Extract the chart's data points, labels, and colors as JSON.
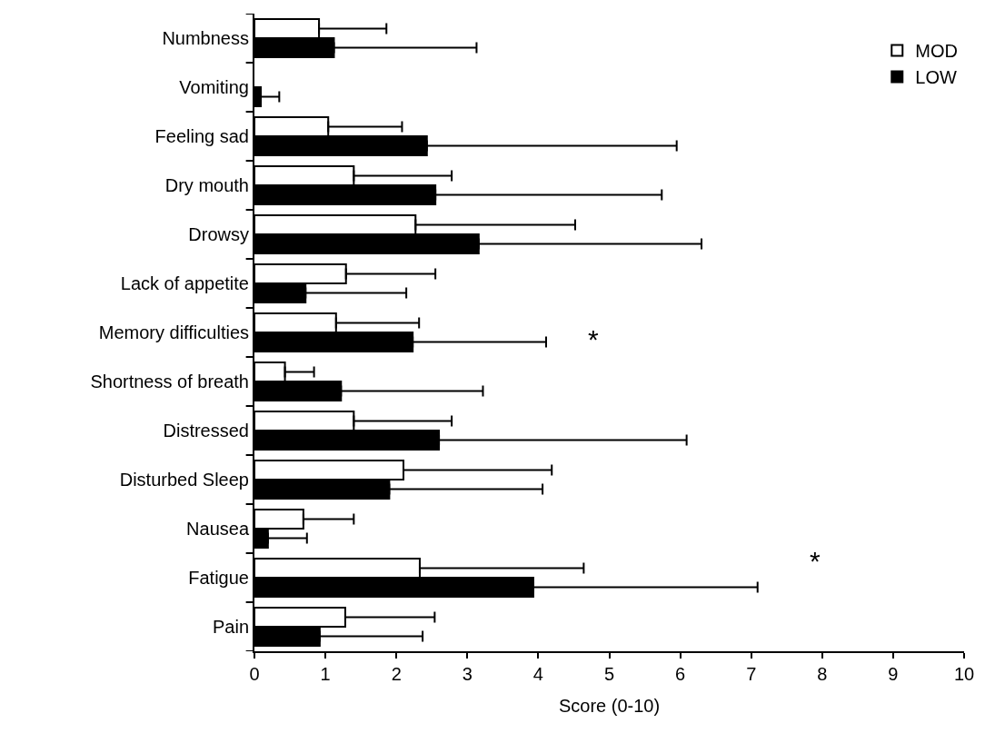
{
  "chart_data": {
    "type": "bar",
    "orientation": "horizontal",
    "xlabel": "Score (0-10)",
    "categories": [
      "Numbness",
      "Vomiting",
      "Feeling sad",
      "Dry mouth",
      "Drowsy",
      "Lack of appetite",
      "Memory difficulties",
      "Shortness of breath",
      "Distressed",
      "Disturbed Sleep",
      "Nausea",
      "Fatigue",
      "Pain"
    ],
    "series": [
      {
        "name": "MOD",
        "color": "#ffffff",
        "values": [
          0.91,
          null,
          1.04,
          1.4,
          2.27,
          1.29,
          1.15,
          0.43,
          1.4,
          2.1,
          0.69,
          2.33,
          1.28
        ],
        "errors": [
          [
            0.91,
            1.86
          ],
          null,
          [
            1.04,
            2.08
          ],
          [
            1.4,
            2.78
          ],
          [
            2.27,
            4.52
          ],
          [
            1.29,
            2.55
          ],
          [
            1.15,
            2.32
          ],
          [
            0.43,
            0.84
          ],
          [
            1.4,
            2.78
          ],
          [
            2.1,
            4.19
          ],
          [
            0.69,
            1.4
          ],
          [
            2.33,
            4.64
          ],
          [
            1.28,
            2.54
          ]
        ]
      },
      {
        "name": "LOW",
        "color": "#000000",
        "values": [
          1.12,
          0.09,
          2.43,
          2.55,
          3.16,
          0.72,
          2.23,
          1.22,
          2.6,
          1.9,
          0.19,
          3.93,
          0.92
        ],
        "errors": [
          [
            1.12,
            3.13
          ],
          [
            0.09,
            0.35
          ],
          [
            2.43,
            5.95
          ],
          [
            2.55,
            5.74
          ],
          [
            3.16,
            6.3
          ],
          [
            0.72,
            2.14
          ],
          [
            2.23,
            4.11
          ],
          [
            1.22,
            3.22
          ],
          [
            2.6,
            6.09
          ],
          [
            1.9,
            4.06
          ],
          [
            0.19,
            0.74
          ],
          [
            3.93,
            7.09
          ],
          [
            0.92,
            2.37
          ]
        ]
      }
    ],
    "xlim": [
      0,
      10
    ],
    "xticks": [
      0,
      1,
      2,
      3,
      4,
      5,
      6,
      7,
      8,
      9,
      10
    ],
    "annotations": [
      "*",
      "*"
    ],
    "legend": "top right",
    "grid": false
  }
}
